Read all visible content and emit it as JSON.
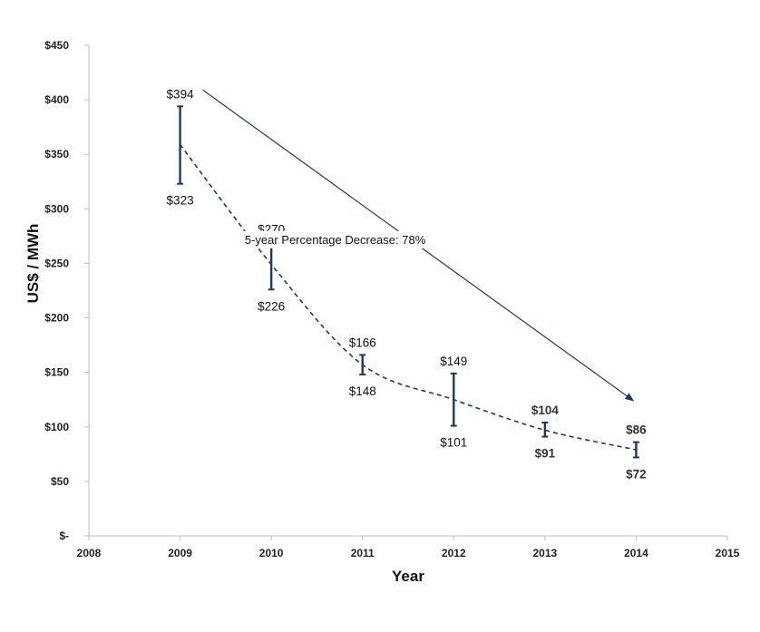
{
  "chart_data": {
    "type": "line",
    "title": "",
    "xlabel": "Year",
    "ylabel": "US$ / MWh",
    "xlim": [
      2008,
      2015
    ],
    "ylim": [
      0,
      450
    ],
    "x_ticks": [
      2008,
      2009,
      2010,
      2011,
      2012,
      2013,
      2014,
      2015
    ],
    "y_ticks": [
      0,
      50,
      100,
      150,
      200,
      250,
      300,
      350,
      400,
      450
    ],
    "y_tick_labels": [
      "$-",
      "$50",
      "$100",
      "$150",
      "$200",
      "$250",
      "$300",
      "$350",
      "$400",
      "$450"
    ],
    "grid": false,
    "legend": "none",
    "series": [
      {
        "line_style": "dashed",
        "points": [
          {
            "x": 2009,
            "y": 359,
            "high": 394,
            "low": 323,
            "high_label": "$394",
            "low_label": "$323",
            "bold": false
          },
          {
            "x": 2010,
            "y": 249,
            "high": 270,
            "low": 226,
            "high_label": "$270",
            "low_label": "$226",
            "bold": false
          },
          {
            "x": 2011,
            "y": 157,
            "high": 166,
            "low": 148,
            "high_label": "$166",
            "low_label": "$148",
            "bold": false
          },
          {
            "x": 2012,
            "y": 125,
            "high": 149,
            "low": 101,
            "high_label": "$149",
            "low_label": "$101",
            "bold": false
          },
          {
            "x": 2013,
            "y": 97,
            "high": 104,
            "low": 91,
            "high_label": "$104",
            "low_label": "$91",
            "bold": true
          },
          {
            "x": 2014,
            "y": 79,
            "high": 86,
            "low": 72,
            "high_label": "$86",
            "low_label": "$72",
            "bold": true
          }
        ]
      }
    ],
    "annotation": {
      "text": "5-year Percentage Decrease: 78%",
      "arrow_from": {
        "x": 2009.25,
        "y": 409
      },
      "arrow_to": {
        "x": 2013.97,
        "y": 124
      },
      "text_at": {
        "x": 2010.7,
        "y": 268
      }
    },
    "colors": {
      "series": "#1f3864",
      "arrow": "#1f3864",
      "axis": "#bfbfbf",
      "text": "#222222"
    }
  }
}
